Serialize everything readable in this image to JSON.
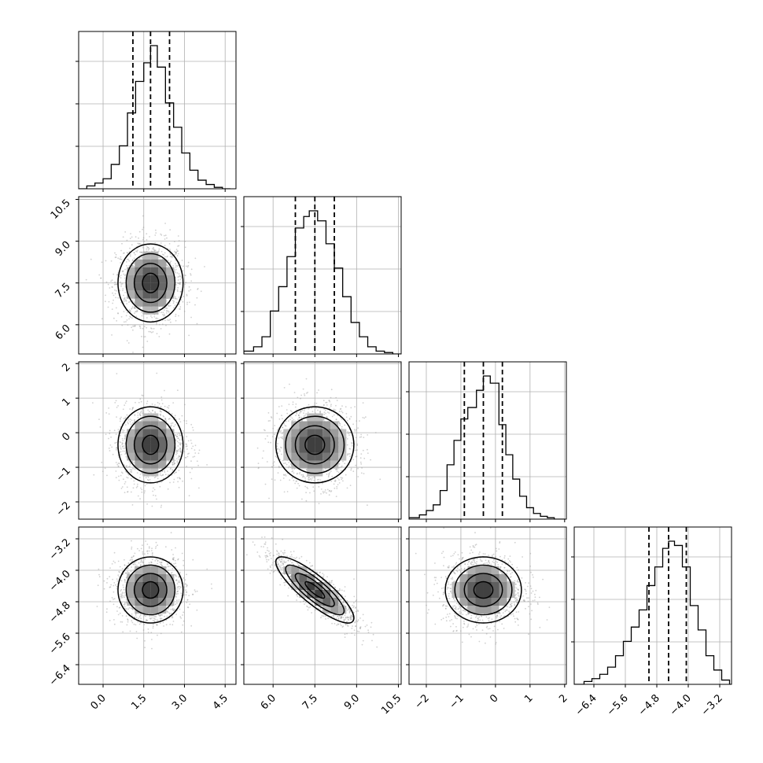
{
  "chart_data": {
    "type": "corner",
    "grid": true,
    "parameters": [
      {
        "range": [
          -0.9,
          4.9
        ],
        "ticks": [
          0.0,
          1.5,
          3.0,
          4.5
        ],
        "tick_labels": [
          "0.0",
          "1.5",
          "3.0",
          "4.5"
        ],
        "quantiles": [
          1.1,
          1.75,
          2.45
        ],
        "hist_bins": [
          [
            -0.9,
            0.0
          ],
          [
            -0.6,
            0.02
          ],
          [
            -0.3,
            0.04
          ],
          [
            0.0,
            0.07
          ],
          [
            0.3,
            0.17
          ],
          [
            0.6,
            0.3
          ],
          [
            0.9,
            0.53
          ],
          [
            1.2,
            0.75
          ],
          [
            1.5,
            0.88
          ],
          [
            1.75,
            1.0
          ],
          [
            2.0,
            0.85
          ],
          [
            2.3,
            0.6
          ],
          [
            2.6,
            0.43
          ],
          [
            2.9,
            0.25
          ],
          [
            3.2,
            0.13
          ],
          [
            3.5,
            0.06
          ],
          [
            3.8,
            0.03
          ],
          [
            4.1,
            0.01
          ],
          [
            4.4,
            0.0
          ]
        ],
        "density_center": 1.75,
        "density_sigma": 0.6
      },
      {
        "range": [
          4.95,
          10.6
        ],
        "ticks": [
          6.0,
          7.5,
          9.0,
          10.5
        ],
        "tick_labels": [
          "6.0",
          "7.5",
          "9.0",
          "10.5"
        ],
        "quantiles": [
          6.8,
          7.5,
          8.2
        ],
        "hist_bins": [
          [
            4.95,
            0.02
          ],
          [
            5.3,
            0.05
          ],
          [
            5.6,
            0.12
          ],
          [
            5.9,
            0.3
          ],
          [
            6.2,
            0.47
          ],
          [
            6.5,
            0.68
          ],
          [
            6.8,
            0.88
          ],
          [
            7.1,
            0.96
          ],
          [
            7.3,
            1.0
          ],
          [
            7.6,
            0.93
          ],
          [
            7.9,
            0.77
          ],
          [
            8.2,
            0.6
          ],
          [
            8.5,
            0.4
          ],
          [
            8.8,
            0.22
          ],
          [
            9.1,
            0.12
          ],
          [
            9.4,
            0.05
          ],
          [
            9.7,
            0.02
          ],
          [
            10.0,
            0.01
          ],
          [
            10.3,
            0.0
          ]
        ],
        "density_center": 7.5,
        "density_sigma": 0.7
      },
      {
        "range": [
          -2.5,
          2.05
        ],
        "ticks": [
          -2,
          -1,
          0,
          1,
          2
        ],
        "tick_labels": [
          "-2",
          "-1",
          "0",
          "1",
          "2"
        ],
        "quantiles": [
          -0.9,
          -0.35,
          0.2
        ],
        "hist_bins": [
          [
            -2.5,
            0.01
          ],
          [
            -2.2,
            0.03
          ],
          [
            -2.0,
            0.06
          ],
          [
            -1.8,
            0.1
          ],
          [
            -1.6,
            0.2
          ],
          [
            -1.4,
            0.38
          ],
          [
            -1.2,
            0.55
          ],
          [
            -1.0,
            0.7
          ],
          [
            -0.8,
            0.78
          ],
          [
            -0.55,
            0.9
          ],
          [
            -0.35,
            1.0
          ],
          [
            -0.15,
            0.95
          ],
          [
            0.1,
            0.66
          ],
          [
            0.3,
            0.45
          ],
          [
            0.5,
            0.28
          ],
          [
            0.7,
            0.16
          ],
          [
            0.9,
            0.08
          ],
          [
            1.1,
            0.04
          ],
          [
            1.3,
            0.02
          ],
          [
            1.5,
            0.01
          ],
          [
            1.7,
            0.0
          ]
        ],
        "density_center": -0.35,
        "density_sigma": 0.55
      },
      {
        "range": [
          -6.9,
          -2.9
        ],
        "ticks": [
          -6.4,
          -5.6,
          -4.8,
          -4.0,
          -3.2
        ],
        "tick_labels": [
          "-6.4",
          "-5.6",
          "-4.8",
          "-4.0",
          "-3.2"
        ],
        "quantiles": [
          -5.0,
          -4.5,
          -4.05
        ],
        "hist_bins": [
          [
            -6.9,
            0.0
          ],
          [
            -6.65,
            0.02
          ],
          [
            -6.45,
            0.04
          ],
          [
            -6.25,
            0.07
          ],
          [
            -6.05,
            0.12
          ],
          [
            -5.85,
            0.2
          ],
          [
            -5.65,
            0.3
          ],
          [
            -5.45,
            0.4
          ],
          [
            -5.25,
            0.52
          ],
          [
            -5.05,
            0.69
          ],
          [
            -4.85,
            0.82
          ],
          [
            -4.65,
            0.95
          ],
          [
            -4.5,
            1.0
          ],
          [
            -4.35,
            0.97
          ],
          [
            -4.15,
            0.82
          ],
          [
            -3.95,
            0.55
          ],
          [
            -3.75,
            0.38
          ],
          [
            -3.55,
            0.2
          ],
          [
            -3.35,
            0.1
          ],
          [
            -3.15,
            0.03
          ],
          [
            -2.95,
            0.0
          ]
        ],
        "density_center": -4.5,
        "density_sigma": 0.42
      }
    ],
    "correlations": {
      "0-1": 0.0,
      "0-2": 0.0,
      "0-3": 0.0,
      "1-2": 0.0,
      "1-3": -0.85,
      "2-3": 0.0
    },
    "y_tick_labels_rows": [
      [
        "10.5",
        "9.0",
        "7.5",
        "6.0"
      ],
      [
        "2",
        "1",
        "0",
        "-1",
        "-2"
      ],
      [
        "-3.2",
        "-4.0",
        "-4.8",
        "-5.6",
        "-6.4"
      ]
    ],
    "hist_y_ticks": [
      0.27,
      0.54,
      0.81
    ],
    "contour_levels": [
      0.5,
      1.0,
      1.5,
      2.0
    ]
  }
}
